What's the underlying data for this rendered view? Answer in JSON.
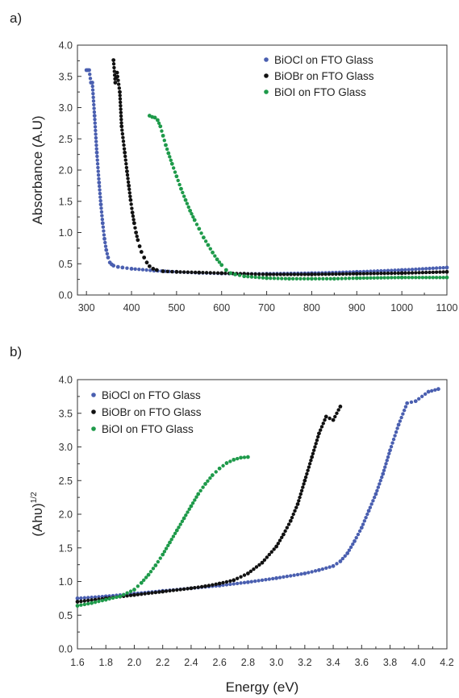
{
  "chart_data": [
    {
      "panel": "a)",
      "type": "scatter",
      "xlabel": "",
      "ylabel": "Absorbance (A.U)",
      "xlim": [
        280,
        1100
      ],
      "ylim": [
        0,
        4.0
      ],
      "xticks": [
        "300",
        "400",
        "500",
        "600",
        "700",
        "800",
        "900",
        "1000",
        "1100"
      ],
      "yticks": [
        "0.0",
        "0.5",
        "1.0",
        "1.5",
        "2.0",
        "2.5",
        "3.0",
        "3.5",
        "4.0"
      ],
      "legend_position": "top-right",
      "series": [
        {
          "name": "BiOCl on FTO Glass",
          "color": "#4a5fb0",
          "points": [
            [
              300,
              3.6
            ],
            [
              303,
              3.6
            ],
            [
              306,
              3.6
            ],
            [
              310,
              3.4
            ],
            [
              313,
              3.4
            ],
            [
              318,
              2.87
            ],
            [
              323,
              2.28
            ],
            [
              328,
              1.8
            ],
            [
              332,
              1.45
            ],
            [
              336,
              1.15
            ],
            [
              340,
              0.9
            ],
            [
              344,
              0.72
            ],
            [
              348,
              0.6
            ],
            [
              352,
              0.52
            ],
            [
              356,
              0.49
            ],
            [
              360,
              0.47
            ],
            [
              370,
              0.45
            ],
            [
              380,
              0.44
            ],
            [
              400,
              0.42
            ],
            [
              450,
              0.39
            ],
            [
              500,
              0.37
            ],
            [
              550,
              0.355
            ],
            [
              600,
              0.345
            ],
            [
              650,
              0.34
            ],
            [
              700,
              0.34
            ],
            [
              800,
              0.35
            ],
            [
              900,
              0.37
            ],
            [
              1000,
              0.4
            ],
            [
              1100,
              0.44
            ]
          ]
        },
        {
          "name": "BiOBr on FTO Glass",
          "color": "#111111",
          "points": [
            [
              360,
              3.76
            ],
            [
              364,
              3.4
            ],
            [
              368,
              3.56
            ],
            [
              374,
              3.25
            ],
            [
              378,
              2.7
            ],
            [
              385,
              2.28
            ],
            [
              390,
              1.98
            ],
            [
              394,
              1.75
            ],
            [
              398,
              1.52
            ],
            [
              402,
              1.32
            ],
            [
              406,
              1.15
            ],
            [
              410,
              1.0
            ],
            [
              414,
              0.88
            ],
            [
              418,
              0.78
            ],
            [
              422,
              0.69
            ],
            [
              428,
              0.6
            ],
            [
              434,
              0.52
            ],
            [
              440,
              0.46
            ],
            [
              448,
              0.42
            ],
            [
              456,
              0.4
            ],
            [
              470,
              0.38
            ],
            [
              500,
              0.37
            ],
            [
              550,
              0.36
            ],
            [
              600,
              0.35
            ],
            [
              650,
              0.34
            ],
            [
              700,
              0.33
            ],
            [
              800,
              0.33
            ],
            [
              900,
              0.34
            ],
            [
              1000,
              0.35
            ],
            [
              1100,
              0.37
            ]
          ]
        },
        {
          "name": "BiOI on FTO Glass",
          "color": "#1e9a4a",
          "points": [
            [
              440,
              2.87
            ],
            [
              446,
              2.85
            ],
            [
              452,
              2.84
            ],
            [
              458,
              2.8
            ],
            [
              464,
              2.7
            ],
            [
              470,
              2.55
            ],
            [
              476,
              2.4
            ],
            [
              482,
              2.27
            ],
            [
              490,
              2.1
            ],
            [
              500,
              1.9
            ],
            [
              510,
              1.7
            ],
            [
              520,
              1.52
            ],
            [
              530,
              1.35
            ],
            [
              540,
              1.2
            ],
            [
              550,
              1.06
            ],
            [
              560,
              0.92
            ],
            [
              570,
              0.8
            ],
            [
              580,
              0.68
            ],
            [
              590,
              0.57
            ],
            [
              600,
              0.48
            ],
            [
              610,
              0.4
            ],
            [
              620,
              0.35
            ],
            [
              630,
              0.33
            ],
            [
              650,
              0.3
            ],
            [
              700,
              0.27
            ],
            [
              750,
              0.26
            ],
            [
              800,
              0.26
            ],
            [
              850,
              0.26
            ],
            [
              900,
              0.27
            ],
            [
              1000,
              0.28
            ],
            [
              1100,
              0.28
            ]
          ]
        }
      ]
    },
    {
      "panel": "b)",
      "type": "scatter",
      "xlabel": "Energy (eV)",
      "ylabel": "(Ahυ)",
      "ylabel_superscript": "1/2",
      "xlim": [
        1.6,
        4.2
      ],
      "ylim": [
        0,
        4.0
      ],
      "xticks": [
        "1.6",
        "1.8",
        "2.0",
        "2.2",
        "2.4",
        "2.6",
        "2.8",
        "3.0",
        "3.2",
        "3.4",
        "3.6",
        "3.8",
        "4.0",
        "4.2"
      ],
      "yticks": [
        "0.0",
        "0.5",
        "1.0",
        "1.5",
        "2.0",
        "2.5",
        "3.0",
        "3.5",
        "4.0"
      ],
      "legend_position": "top-left",
      "series": [
        {
          "name": "BiOCl on FTO Glass",
          "color": "#4a5fb0",
          "points": [
            [
              1.6,
              0.75
            ],
            [
              1.8,
              0.78
            ],
            [
              2.0,
              0.82
            ],
            [
              2.2,
              0.86
            ],
            [
              2.4,
              0.9
            ],
            [
              2.6,
              0.94
            ],
            [
              2.8,
              0.99
            ],
            [
              3.0,
              1.05
            ],
            [
              3.2,
              1.12
            ],
            [
              3.3,
              1.17
            ],
            [
              3.4,
              1.23
            ],
            [
              3.45,
              1.3
            ],
            [
              3.5,
              1.42
            ],
            [
              3.55,
              1.6
            ],
            [
              3.6,
              1.8
            ],
            [
              3.65,
              2.05
            ],
            [
              3.7,
              2.3
            ],
            [
              3.75,
              2.6
            ],
            [
              3.8,
              2.95
            ],
            [
              3.86,
              3.33
            ],
            [
              3.92,
              3.65
            ],
            [
              3.98,
              3.68
            ],
            [
              4.07,
              3.82
            ],
            [
              4.14,
              3.86
            ]
          ]
        },
        {
          "name": "BiOBr on FTO Glass",
          "color": "#111111",
          "points": [
            [
              1.6,
              0.7
            ],
            [
              1.8,
              0.75
            ],
            [
              2.0,
              0.8
            ],
            [
              2.2,
              0.85
            ],
            [
              2.4,
              0.9
            ],
            [
              2.5,
              0.93
            ],
            [
              2.6,
              0.97
            ],
            [
              2.7,
              1.02
            ],
            [
              2.8,
              1.12
            ],
            [
              2.9,
              1.28
            ],
            [
              3.0,
              1.52
            ],
            [
              3.05,
              1.7
            ],
            [
              3.1,
              1.9
            ],
            [
              3.15,
              2.15
            ],
            [
              3.2,
              2.5
            ],
            [
              3.25,
              2.85
            ],
            [
              3.3,
              3.2
            ],
            [
              3.35,
              3.45
            ],
            [
              3.4,
              3.4
            ],
            [
              3.45,
              3.6
            ]
          ]
        },
        {
          "name": "BiOI on FTO Glass",
          "color": "#1e9a4a",
          "points": [
            [
              1.6,
              0.64
            ],
            [
              1.7,
              0.68
            ],
            [
              1.8,
              0.73
            ],
            [
              1.9,
              0.78
            ],
            [
              2.0,
              0.88
            ],
            [
              2.05,
              0.98
            ],
            [
              2.1,
              1.1
            ],
            [
              2.15,
              1.24
            ],
            [
              2.2,
              1.4
            ],
            [
              2.25,
              1.58
            ],
            [
              2.3,
              1.76
            ],
            [
              2.35,
              1.94
            ],
            [
              2.4,
              2.12
            ],
            [
              2.45,
              2.3
            ],
            [
              2.5,
              2.45
            ],
            [
              2.55,
              2.58
            ],
            [
              2.6,
              2.68
            ],
            [
              2.65,
              2.76
            ],
            [
              2.7,
              2.81
            ],
            [
              2.75,
              2.84
            ],
            [
              2.8,
              2.85
            ]
          ]
        }
      ]
    }
  ]
}
